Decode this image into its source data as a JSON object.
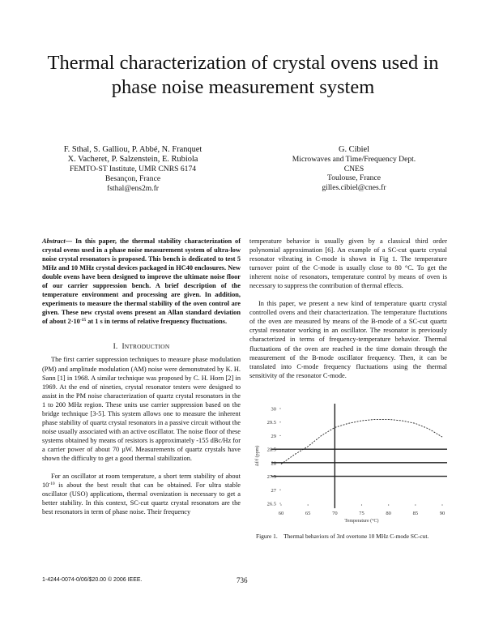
{
  "title": "Thermal characterization of crystal ovens used in phase noise measurement system",
  "authors_left": {
    "names": [
      "F. Sthal, S. Galliou, P. Abbé, N. Franquet",
      "X. Vacheret, P. Salzenstein, E. Rubiola"
    ],
    "affiliation": "FEMTO-ST Institute, UMR CNRS 6174",
    "location": "Besançon, France",
    "email": "fsthal@ens2m.fr"
  },
  "authors_right": {
    "names": [
      "G. Cibiel"
    ],
    "department": "Microwaves and Time/Frequency Dept.",
    "affiliation": "CNES",
    "location": "Toulouse, France",
    "email": "gilles.cibiel@cnes.fr"
  },
  "abstract": {
    "label": "Abstract—",
    "text": " In this paper, the thermal stability characterization of crystal ovens used in a phase noise measurement system of ultra-low noise crystal resonators is proposed. This bench is dedicated to test 5 MHz and 10 MHz crystal devices packaged in HC40 enclosures. New double ovens have been designed to improve the ultimate noise floor of our carrier suppression bench. A brief description of the temperature environment and processing are given. In addition, experiments to measure the thermal stability of the oven control are given. These new crystal ovens present an Allan standard deviation of about 2·10",
    "exponent": "-15",
    "text_end": " at 1 s in terms of relative frequency fluctuations."
  },
  "intro_heading": {
    "number": "I.",
    "first": "I",
    "rest": "NTRODUCTION"
  },
  "left_paragraphs": {
    "p1": "The first carrier suppression techniques to measure phase modulation (PM) and amplitude modulation (AM) noise were demonstrated by K. H. Sann [1] in 1968. A similar technique was proposed by C. H. Horn [2] in 1969. At the end of nineties, crystal resonator testers were designed to assist in the PM noise characterization of quartz crystal resonators in the 1 to 200 MHz region. These units use carrier suppression based on the bridge technique [3-5]. This system allows one to measure the inherent phase stability of quartz crystal resonators in a passive circuit without the noise usually associated with an active oscillator. The noise floor of these systems obtained by means of resistors is approximately -155 dBc/Hz for a carrier power of about 70 µW. Measurements of quartz crystals have shown the difficulty to get a good thermal stabilization.",
    "p2_start": "For an oscillator at room temperature, a short term stability of about 10",
    "p2_exponent": "-10",
    "p2_end": " is about the best result that can be obtained. For ultra stable oscillator (USO) applications, thermal ovenization is necessary to get a better stability. In this context, SC-cut quartz crystal resonators are the best resonators in term of phase noise. Their frequency"
  },
  "right_paragraphs": {
    "p1": "temperature behavior is usually given by a classical third order polynomial approximation [6]. An example of a SC-cut quartz crystal resonator vibrating in C-mode is shown in Fig 1. The temperature turnover point of the C-mode is usually close to 80 °C. To get the inherent noise of resonators, temperature control by means of oven is necessary to suppress the contribution of thermal effects.",
    "p2": "In this paper, we present a new kind of temperature quartz crystal controlled ovens and their characterization. The temperature fluctutions of the oven are measured by means of the B-mode of a SC-cut quartz crystal resonator working in an oscillator. The resonator is previously characterized in terms of frequency-temperature behavior. Thermal fluctuations of the oven are reached in the time domain through the measurement of the B-mode oscillator frequency. Then, it can be translated into C-mode frequency fluctuations using the thermal sensitivity of the resonator C-mode."
  },
  "chart_data": {
    "type": "line",
    "xlabel": "Temperature (°C)",
    "ylabel": "Δf/f (ppm)",
    "xlim": [
      60,
      90
    ],
    "ylim": [
      26.5,
      30
    ],
    "x_ticks": [
      "60",
      "65",
      "70",
      "75",
      "80",
      "85",
      "90"
    ],
    "y_ticks": [
      "30",
      "29.5",
      "29",
      "28.5",
      "28",
      "27.5",
      "27",
      "26.5"
    ],
    "series": [
      {
        "x": [
          60,
          62.5,
          65,
          67.5,
          70,
          72.5,
          75,
          77.5,
          80,
          82.5,
          85,
          87.5,
          90
        ],
        "y": [
          27.95,
          28.3,
          28.6,
          29.0,
          29.3,
          29.45,
          29.55,
          29.6,
          29.6,
          29.55,
          29.45,
          29.25,
          28.95
        ],
        "style": "dashed"
      }
    ],
    "reference_lines": {
      "y": [
        28.5,
        28,
        27.5
      ],
      "x": [
        70
      ]
    },
    "grid": false
  },
  "caption": {
    "label": "Figure 1.",
    "text": "Thermal behaviors of 3rd overtone 10 MHz C-mode SC-cut."
  },
  "footer": {
    "copyright": "1-4244-0074-0/06/$20.00 © 2006 IEEE.",
    "page_number": "736"
  }
}
